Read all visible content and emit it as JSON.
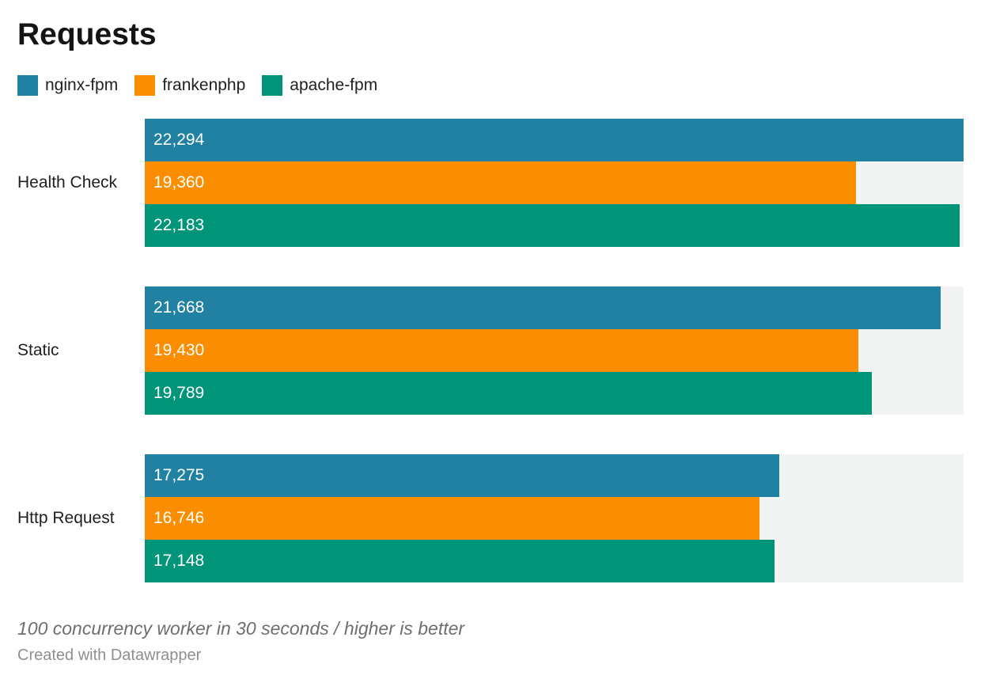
{
  "title": "Requests",
  "chart_data": {
    "type": "bar",
    "orientation": "horizontal",
    "title": "Requests",
    "categories": [
      "Health Check",
      "Static",
      "Http Request"
    ],
    "series": [
      {
        "name": "nginx-fpm",
        "color": "#2081a2",
        "values": [
          22294,
          21668,
          17275
        ],
        "labels": [
          "22,294",
          "21,668",
          "17,275"
        ]
      },
      {
        "name": "frankenphp",
        "color": "#fa8e00",
        "values": [
          19360,
          19430,
          16746
        ],
        "labels": [
          "19,360",
          "19,430",
          "16,746"
        ]
      },
      {
        "name": "apache-fpm",
        "color": "#009478",
        "values": [
          22183,
          19789,
          17148
        ],
        "labels": [
          "22,183",
          "19,789",
          "17,148"
        ]
      }
    ],
    "xlim": [
      0,
      22294
    ],
    "grid": false,
    "legend_position": "top",
    "value_labels_inside": true,
    "track_color": "#f2f3f3"
  },
  "footer": {
    "note": "100 concurrency worker in 30 seconds / higher is better",
    "attribution": "Created with Datawrapper"
  }
}
